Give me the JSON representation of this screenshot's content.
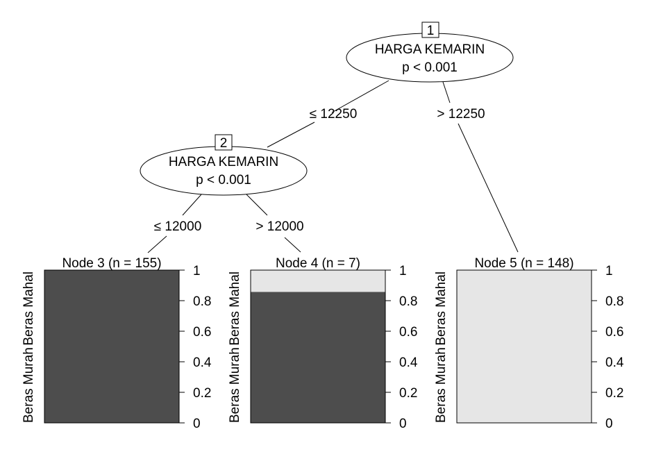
{
  "tree": {
    "inner_nodes": [
      {
        "id": "1",
        "variable": "HARGA KEMARIN",
        "p_value": "p < 0.001"
      },
      {
        "id": "2",
        "variable": "HARGA KEMARIN",
        "p_value": "p < 0.001"
      }
    ],
    "edges": [
      {
        "from": "1",
        "to": "2",
        "label": "≤ 12250"
      },
      {
        "from": "1",
        "to": "5",
        "label": "> 12250"
      },
      {
        "from": "2",
        "to": "3",
        "label": "≤ 12000"
      },
      {
        "from": "2",
        "to": "4",
        "label": "> 12000"
      }
    ],
    "terminal_nodes": [
      {
        "id": "3",
        "title": "Node 3 (n = 155)",
        "n": 155,
        "proportion_beras_murah": 1.0
      },
      {
        "id": "4",
        "title": "Node 4 (n = 7)",
        "n": 7,
        "proportion_beras_murah": 0.857
      },
      {
        "id": "5",
        "title": "Node 5 (n = 148)",
        "n": 148,
        "proportion_beras_murah": 0.0
      }
    ],
    "class_labels": {
      "bottom": "Beras Murah",
      "top": "Beras Mahal"
    },
    "axis_ticks": [
      "0",
      "0.2",
      "0.4",
      "0.6",
      "0.8",
      "1"
    ],
    "colors": {
      "murah": "#4d4d4d",
      "mahal": "#e6e6e6",
      "line": "#000000"
    }
  }
}
